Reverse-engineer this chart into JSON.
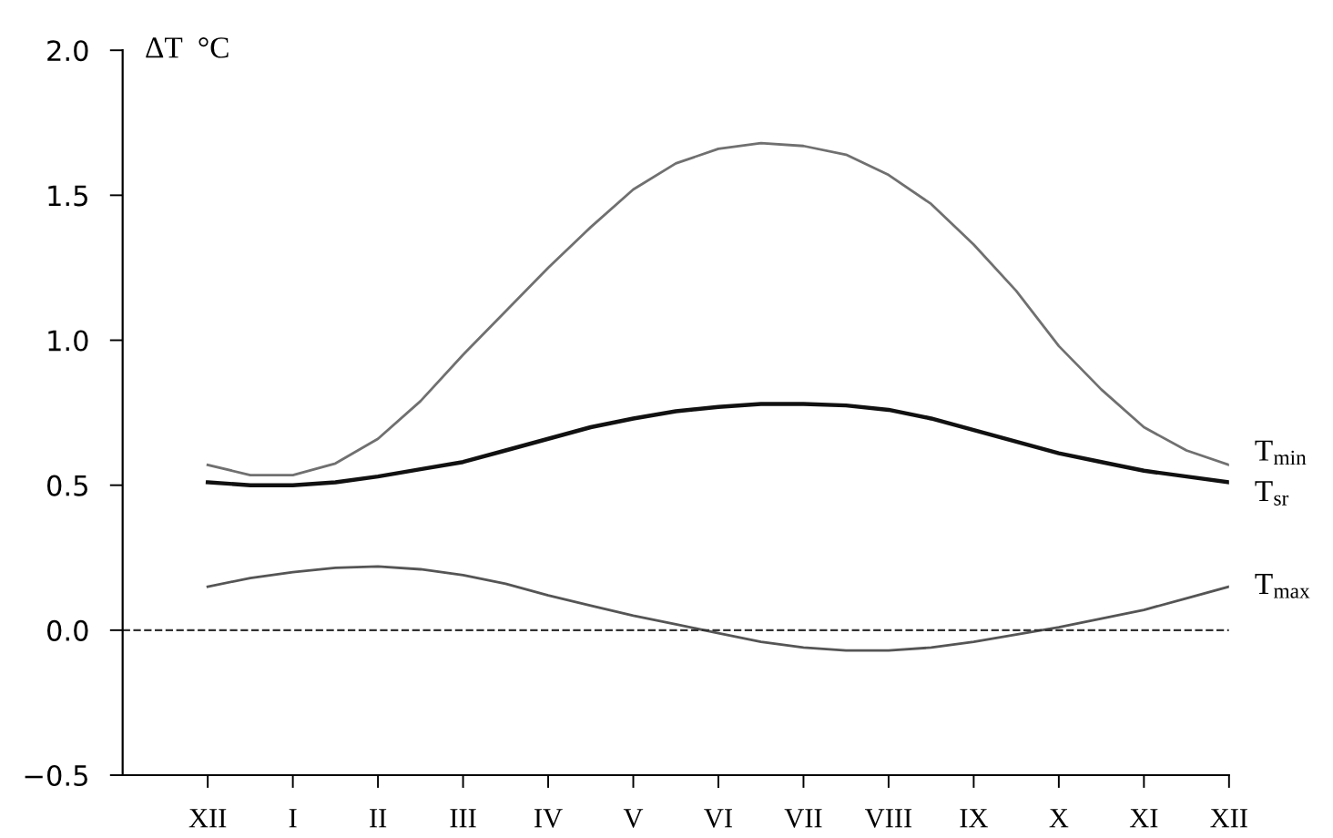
{
  "chart_data": {
    "type": "line",
    "ylabel": "ΔT  °C",
    "categories": [
      "XII",
      null,
      "I",
      null,
      "II",
      null,
      "III",
      null,
      "IV",
      null,
      "V",
      null,
      "VI",
      null,
      "VII",
      null,
      "VIII",
      null,
      "IX",
      null,
      "X",
      null,
      "XI",
      null,
      "XII"
    ],
    "ylim": [
      -0.5,
      2.0
    ],
    "yticks": [
      {
        "value": -0.5,
        "label": "−0.5"
      },
      {
        "value": 0,
        "label": "0.0"
      },
      {
        "value": 0.5,
        "label": "0.5"
      },
      {
        "value": 1.0,
        "label": "1.0"
      },
      {
        "value": 1.5,
        "label": "1.5"
      },
      {
        "value": 2.0,
        "label": "2.0"
      }
    ],
    "grid": false,
    "legend": false,
    "marker": "none",
    "line_style": "solid",
    "ref_lines": [
      {
        "axis": "y",
        "value": 0,
        "color": "#333333",
        "line_style": "dashed"
      }
    ],
    "series": [
      {
        "name": "T$_{min}$",
        "color": "#707070",
        "values": [
          0.57,
          0.535,
          0.535,
          0.575,
          0.66,
          0.79,
          0.95,
          1.1,
          1.25,
          1.39,
          1.52,
          1.61,
          1.66,
          1.68,
          1.67,
          1.64,
          1.57,
          1.47,
          1.33,
          1.17,
          0.98,
          0.83,
          0.7,
          0.62,
          0.57
        ]
      },
      {
        "name": "T$_{sr}$",
        "color": "#111111",
        "values": [
          0.51,
          0.5,
          0.5,
          0.51,
          0.53,
          0.555,
          0.58,
          0.62,
          0.66,
          0.7,
          0.73,
          0.755,
          0.77,
          0.78,
          0.78,
          0.775,
          0.76,
          0.73,
          0.69,
          0.65,
          0.61,
          0.58,
          0.55,
          0.53,
          0.51
        ]
      },
      {
        "name": "T$_{max}$",
        "color": "#555555",
        "values": [
          0.15,
          0.18,
          0.2,
          0.215,
          0.22,
          0.21,
          0.19,
          0.16,
          0.12,
          0.085,
          0.05,
          0.02,
          -0.01,
          -0.04,
          -0.06,
          -0.07,
          -0.07,
          -0.06,
          -0.04,
          -0.015,
          0.01,
          0.04,
          0.07,
          0.11,
          0.15
        ]
      }
    ]
  }
}
